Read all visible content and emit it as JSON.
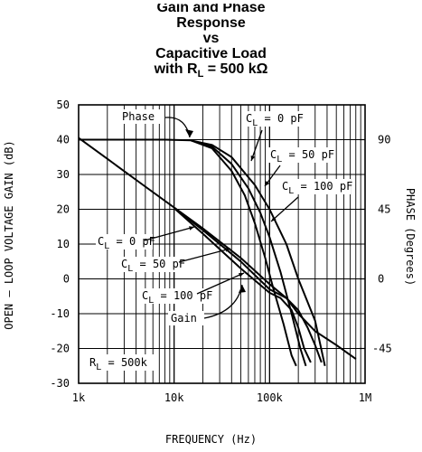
{
  "chart_data": {
    "type": "line",
    "title_lines": [
      "Gain and Phase",
      "Response",
      "vs",
      "Capacitive Load"
    ],
    "title_last_prefix": "with R",
    "title_last_sub": "L",
    "title_last_suffix": " = 500 kΩ",
    "xlabel": "FREQUENCY (Hz)",
    "ylabel": "OPEN – LOOP VOLTAGE GAIN (dB)",
    "ylabel_right": "PHASE (Degrees)",
    "xscale": "log",
    "xlim": [
      1000,
      1000000
    ],
    "ylim": [
      -30,
      50
    ],
    "xticks": [
      "1k",
      "10k",
      "100k",
      "1M"
    ],
    "yticks": [
      "50",
      "40",
      "30",
      "20",
      "10",
      "0",
      "-10",
      "-20",
      "-30"
    ],
    "y2ticks": [
      "90",
      "45",
      "0",
      "-45"
    ],
    "grid": true,
    "gain_series": [
      {
        "name": "Gain (C_L = 0 pF)",
        "points": [
          [
            1000,
            40.5
          ],
          [
            2000,
            34.5
          ],
          [
            5000,
            26.5
          ],
          [
            10000,
            20.5
          ],
          [
            20000,
            14.5
          ],
          [
            50000,
            6
          ],
          [
            100000,
            -1.5
          ],
          [
            150000,
            -5.5
          ],
          [
            200000,
            -10
          ],
          [
            300000,
            -15
          ],
          [
            500000,
            -19
          ],
          [
            800000,
            -23
          ]
        ]
      },
      {
        "name": "Gain (C_L = 50 pF)",
        "points": [
          [
            10000,
            20.5
          ],
          [
            20000,
            14
          ],
          [
            50000,
            5
          ],
          [
            100000,
            -3
          ],
          [
            150000,
            -5.5
          ],
          [
            200000,
            -9
          ],
          [
            250000,
            -14
          ],
          [
            300000,
            -19
          ],
          [
            350000,
            -24
          ]
        ]
      },
      {
        "name": "Gain (C_L = 100 pF)",
        "points": [
          [
            10000,
            20.3
          ],
          [
            20000,
            13
          ],
          [
            50000,
            3
          ],
          [
            100000,
            -4
          ],
          [
            130000,
            -5.5
          ],
          [
            170000,
            -9
          ],
          [
            200000,
            -14
          ],
          [
            230000,
            -20
          ],
          [
            270000,
            -24
          ]
        ]
      }
    ],
    "phase_series": [
      {
        "name": "Phase (C_L = 0 pF)",
        "points": [
          [
            1000,
            40
          ],
          [
            3000,
            40
          ],
          [
            8000,
            40
          ],
          [
            15000,
            39.8
          ],
          [
            25000,
            38.5
          ],
          [
            40000,
            35
          ],
          [
            70000,
            27
          ],
          [
            100000,
            20
          ],
          [
            150000,
            10
          ],
          [
            200000,
            0
          ],
          [
            300000,
            -12
          ],
          [
            380000,
            -25
          ]
        ]
      },
      {
        "name": "Phase (C_L = 50 pF)",
        "points": [
          [
            15000,
            39.8
          ],
          [
            25000,
            38
          ],
          [
            40000,
            33
          ],
          [
            60000,
            26
          ],
          [
            80000,
            19
          ],
          [
            100000,
            12
          ],
          [
            130000,
            2
          ],
          [
            170000,
            -10
          ],
          [
            210000,
            -20
          ],
          [
            240000,
            -25
          ]
        ]
      },
      {
        "name": "Phase (C_L = 100 pF)",
        "points": [
          [
            15000,
            39.8
          ],
          [
            25000,
            37.5
          ],
          [
            40000,
            31
          ],
          [
            55000,
            24
          ],
          [
            70000,
            16
          ],
          [
            90000,
            6
          ],
          [
            110000,
            -3
          ],
          [
            140000,
            -13
          ],
          [
            170000,
            -22
          ],
          [
            190000,
            -25
          ]
        ]
      }
    ],
    "annotations": {
      "phase": "Phase",
      "gain": "Gain",
      "cl0_top": "= 0 pF",
      "cl50_top": "= 50 pF",
      "cl100_top": "= 100 pF",
      "cl0_left": "= 0 pF",
      "cl50_left": "= 50 pF",
      "cl100_left": "= 100 pF",
      "rl": "= 500k",
      "c_prefix": "C",
      "l_sub": "L",
      "r_prefix": "R"
    }
  },
  "colors": {
    "line": "#000000",
    "grid": "#000000",
    "background": "#ffffff"
  }
}
